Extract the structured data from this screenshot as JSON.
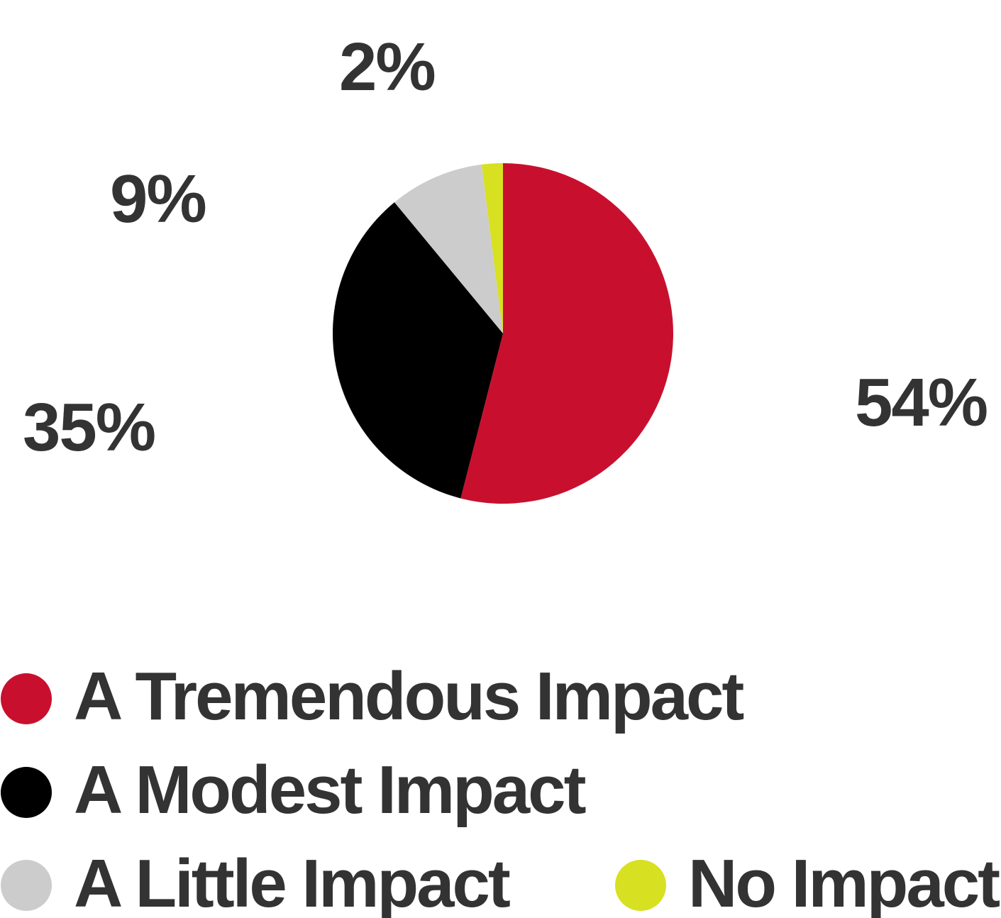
{
  "chart_data": {
    "type": "pie",
    "categories": [
      "A Tremendous Impact",
      "A Modest Impact",
      "A Little Impact",
      "No Impact"
    ],
    "values": [
      54,
      35,
      9,
      2
    ],
    "value_labels": [
      "54%",
      "35%",
      "9%",
      "2%"
    ],
    "colors": [
      "#c8102e",
      "#000000",
      "#cccccc",
      "#d7e021"
    ],
    "start_angle_deg": 0,
    "direction": "clockwise",
    "legend_position": "bottom"
  }
}
